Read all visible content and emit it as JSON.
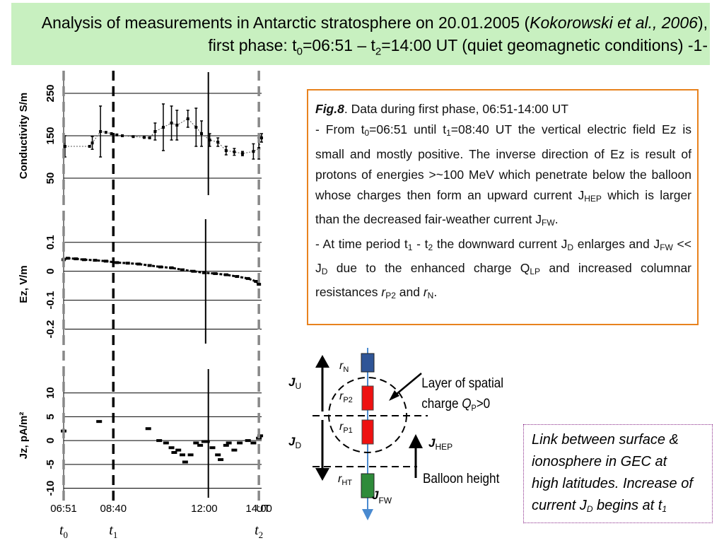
{
  "title": {
    "part1": "Analysis of measurements in Antarctic stratosphere on 20.01.2005 (",
    "italic": "Kokorowski et al., 2006",
    "part2": "), first phase: t",
    "sub0": "0",
    "part3": "=06:51 – t",
    "sub2": "2",
    "part4": "=14:00 UT (quiet geomagnetic conditions)     -1-"
  },
  "colors": {
    "title_bg": "#c8f0c0",
    "caption_border": "#e8821e",
    "note_border": "#8a2a8a",
    "wire": "#4a8ad0",
    "r_n": "#2f5597",
    "r_p": "#ee1111",
    "r_ht": "#2e8b3a"
  },
  "caption": {
    "fig_label": "Fig.8",
    "fig_rest": ". Data during first phase, 06:51-14:00 UT",
    "p1_a": " - From t",
    "p1_sub0": "0",
    "p1_b": "=06:51 until t",
    "p1_sub1": "1",
    "p1_c": "=08:40 UT the vertical electric field Ez is small and mostly positive. The inverse direction of Ez is result of protons of energies >~100 MeV which penetrate below the balloon whose charges then form an upward current J",
    "p1_sub_hep": "HEP",
    "p1_d": " which is larger than the decreased fair-weather current J",
    "p1_sub_fw": "FW",
    "p1_e": ".",
    "p2_a": " - At time period t",
    "p2_sub1": "1",
    "p2_b": " - t",
    "p2_sub2": "2",
    "p2_c": " the downward current J",
    "p2_sub_d": "D",
    "p2_d": " enlarges and J",
    "p2_sub_fw": "FW",
    "p2_e": " << J",
    "p2_sub_d2": "D",
    "p2_f": " due to the enhanced charge Q",
    "p2_sub_lp": "LP",
    "p2_g": " and increased columnar resistances ",
    "p2_r": "r",
    "p2_sub_p2": "P2",
    "p2_h": " and ",
    "p2_r2": "r",
    "p2_sub_n": "N",
    "p2_i": "."
  },
  "note": {
    "line1": "Link between surface &",
    "line2": "ionosphere in GEC at",
    "line3": "high latitudes. Increase of",
    "line4a": "current J",
    "line4sub": "D",
    "line4b": " begins at t",
    "line4sub2": "1"
  },
  "circuit": {
    "r_n": "r",
    "r_n_sub": "N",
    "r_p2": "r",
    "r_p2_sub": "P2",
    "r_p1": "r",
    "r_p1_sub": "P1",
    "r_ht": "r",
    "r_ht_sub": "HT",
    "j_u": "J",
    "j_u_sub": "U",
    "j_d": "J",
    "j_d_sub": "D",
    "j_hep": "J",
    "j_hep_sub": "HEP",
    "j_fw": "J",
    "j_fw_sub": "FW",
    "layer_line1": "Layer of spatial",
    "layer_line2a": "charge ",
    "layer_line2q": "Q",
    "layer_line2sub": "P",
    "layer_line2b": ">0",
    "balloon": "Balloon height"
  },
  "chart_data": [
    {
      "type": "scatter",
      "ylabel": "Conductivity S/m",
      "yticks": [
        50,
        150,
        250
      ],
      "ylim": [
        0,
        300
      ],
      "series": [
        {
          "points": [
            [
              6.9,
              125
            ],
            [
              7.8,
              125
            ],
            [
              7.9,
              133
            ],
            [
              8.2,
              160
            ],
            [
              8.4,
              158
            ],
            [
              8.6,
              155
            ],
            [
              8.8,
              152
            ],
            [
              9.0,
              150
            ],
            [
              9.4,
              148
            ],
            [
              9.8,
              146
            ],
            [
              10.0,
              145
            ],
            [
              10.2,
              160
            ],
            [
              10.5,
              170
            ],
            [
              10.8,
              180
            ],
            [
              11.0,
              175
            ],
            [
              11.4,
              190
            ],
            [
              11.7,
              170
            ],
            [
              11.9,
              155
            ],
            [
              12.2,
              140
            ],
            [
              12.5,
              135
            ],
            [
              12.8,
              115
            ],
            [
              13.1,
              112
            ],
            [
              13.4,
              108
            ],
            [
              13.8,
              113
            ],
            [
              14.0,
              120
            ],
            [
              14.1,
              145
            ]
          ],
          "errors": [
            25,
            0,
            15,
            60,
            0,
            0,
            0,
            0,
            0,
            0,
            0,
            20,
            55,
            40,
            35,
            20,
            45,
            30,
            15,
            10,
            10,
            8,
            5,
            18,
            25,
            10
          ]
        }
      ]
    },
    {
      "type": "scatter",
      "ylabel": "Ez, V/m",
      "yticks": [
        0.1,
        0,
        -0.1,
        -0.2
      ],
      "ylim": [
        -0.25,
        0.18
      ],
      "series": [
        {
          "points": [
            [
              6.85,
              0.04
            ],
            [
              7.0,
              0.045
            ],
            [
              7.3,
              0.043
            ],
            [
              7.6,
              0.04
            ],
            [
              8.0,
              0.038
            ],
            [
              8.4,
              0.035
            ],
            [
              8.8,
              0.03
            ],
            [
              9.2,
              0.028
            ],
            [
              9.6,
              0.025
            ],
            [
              10.0,
              0.02
            ],
            [
              10.4,
              0.015
            ],
            [
              10.8,
              0.012
            ],
            [
              11.2,
              0.005
            ],
            [
              11.6,
              0.0
            ],
            [
              12.0,
              -0.005
            ],
            [
              12.4,
              -0.008
            ],
            [
              12.8,
              -0.012
            ],
            [
              13.2,
              -0.018
            ],
            [
              13.6,
              -0.025
            ],
            [
              13.9,
              -0.035
            ],
            [
              14.0,
              -0.045
            ]
          ]
        }
      ]
    },
    {
      "type": "scatter",
      "ylabel": "Jz, pA/m²",
      "yticks": [
        10,
        5,
        0,
        -5,
        -10
      ],
      "ylim": [
        -12,
        15
      ],
      "series": [
        {
          "points": [
            [
              6.85,
              2.0
            ],
            [
              8.15,
              4.0
            ],
            [
              9.95,
              2.5
            ],
            [
              10.35,
              0.0
            ],
            [
              10.6,
              -0.5
            ],
            [
              10.8,
              -1.5
            ],
            [
              10.9,
              -2.5
            ],
            [
              11.05,
              -2.0
            ],
            [
              11.2,
              -3.0
            ],
            [
              11.3,
              -4.5
            ],
            [
              11.5,
              -3.0
            ],
            [
              11.7,
              -0.5
            ],
            [
              11.85,
              -1.0
            ],
            [
              12.0,
              -0.2
            ],
            [
              12.1,
              -0.2
            ],
            [
              12.3,
              -1.5
            ],
            [
              12.5,
              -3.0
            ],
            [
              12.6,
              -4.0
            ],
            [
              12.8,
              -1.0
            ],
            [
              12.9,
              -0.5
            ],
            [
              13.1,
              -2.0
            ],
            [
              13.3,
              -0.5
            ],
            [
              13.6,
              0.0
            ],
            [
              13.8,
              -0.5
            ],
            [
              14.0,
              0.5
            ],
            [
              14.05,
              1.0
            ]
          ]
        }
      ]
    },
    {
      "type": "axis",
      "x_ticks": [
        {
          "x": 6.85,
          "label": "06:51"
        },
        {
          "x": 8.67,
          "label": "08:40"
        },
        {
          "x": 12.0,
          "label": "12:00"
        },
        {
          "x": 14.0,
          "label": "14:00"
        }
      ],
      "unit": "UT",
      "xlim": [
        6.85,
        14.1
      ],
      "markers": [
        {
          "x": 6.85,
          "label": "t",
          "sub": "0",
          "style": "gray-dashed"
        },
        {
          "x": 8.67,
          "label": "t",
          "sub": "1",
          "style": "black-dashed"
        },
        {
          "x": 14.0,
          "label": "t",
          "sub": "2",
          "style": "gray-dashed"
        }
      ]
    }
  ]
}
